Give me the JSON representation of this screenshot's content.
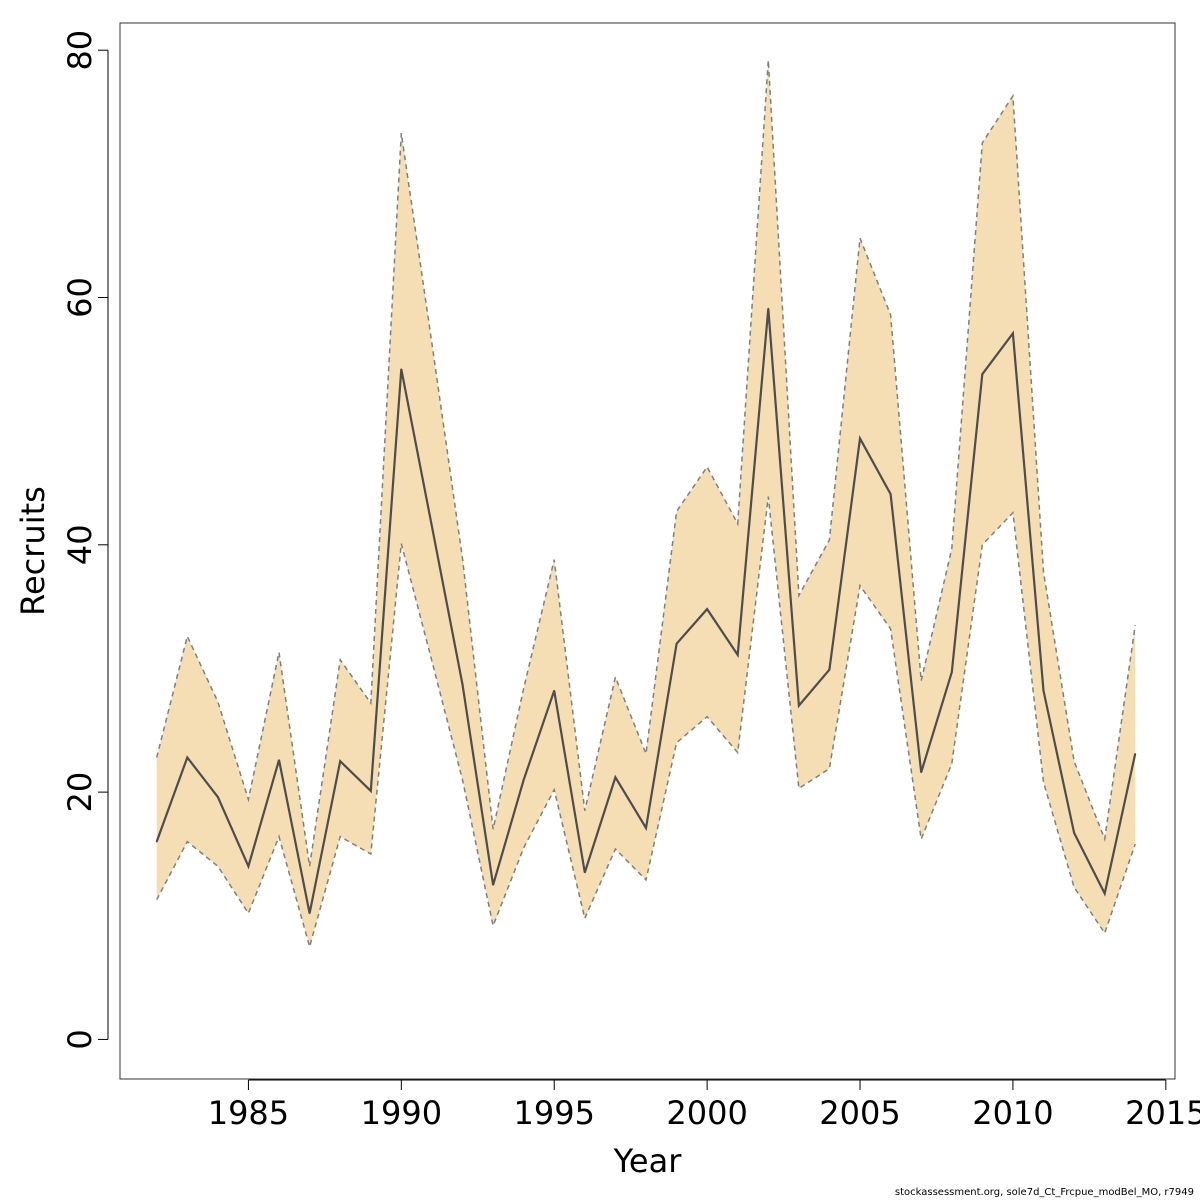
{
  "chart_data": {
    "type": "line",
    "xlabel": "Year",
    "ylabel": "Recruits",
    "xlim": [
      1980.8,
      2015.3
    ],
    "ylim": [
      -3.2,
      82.2
    ],
    "x_ticks": [
      1985,
      1990,
      1995,
      2000,
      2005,
      2010,
      2015
    ],
    "y_ticks": [
      0,
      20,
      40,
      60,
      80
    ],
    "grid": false,
    "legend": "none",
    "colors": {
      "band": "#f5deb3",
      "band_edge": "#7f7f7f",
      "line": "#4d4d4d",
      "frame": "#333333"
    },
    "x": [
      1982,
      1983,
      1984,
      1985,
      1986,
      1987,
      1988,
      1989,
      1990,
      1991,
      1992,
      1993,
      1994,
      1995,
      1996,
      1997,
      1998,
      1999,
      2000,
      2001,
      2002,
      2003,
      2004,
      2005,
      2006,
      2007,
      2008,
      2009,
      2010,
      2011,
      2012,
      2013,
      2014
    ],
    "series": [
      {
        "role": "estimate",
        "values": [
          16.0,
          22.8,
          19.6,
          14.0,
          22.6,
          10.2,
          22.5,
          20.1,
          54.2,
          41.5,
          28.7,
          12.5,
          21.0,
          28.2,
          13.5,
          21.2,
          17.1,
          32.0,
          34.8,
          31.1,
          59.1,
          27.0,
          29.9,
          48.6,
          44.1,
          21.6,
          29.7,
          53.8,
          57.1,
          28.2,
          16.7,
          11.8,
          23.1
        ]
      },
      {
        "role": "upper",
        "values": [
          22.8,
          32.6,
          27.3,
          19.4,
          31.3,
          14.0,
          30.7,
          27.2,
          73.3,
          56.3,
          38.9,
          17.0,
          28.4,
          38.8,
          18.5,
          29.3,
          23.1,
          42.7,
          46.3,
          41.7,
          79.2,
          35.9,
          40.4,
          64.8,
          58.6,
          29.0,
          39.7,
          72.5,
          76.3,
          37.8,
          22.5,
          16.2,
          33.5
        ]
      },
      {
        "role": "lower",
        "values": [
          11.3,
          16.0,
          14.0,
          10.2,
          16.4,
          7.5,
          16.4,
          15.0,
          40.1,
          30.6,
          21.0,
          9.2,
          15.5,
          20.2,
          9.8,
          15.4,
          12.9,
          24.0,
          26.1,
          23.2,
          43.9,
          20.3,
          21.9,
          36.7,
          33.2,
          16.2,
          22.3,
          40.0,
          42.6,
          20.8,
          12.3,
          8.6,
          15.8
        ]
      }
    ]
  },
  "footer_note": "stockassessment.org, sole7d_Ct_Frcpue_modBel_MO, r7949"
}
